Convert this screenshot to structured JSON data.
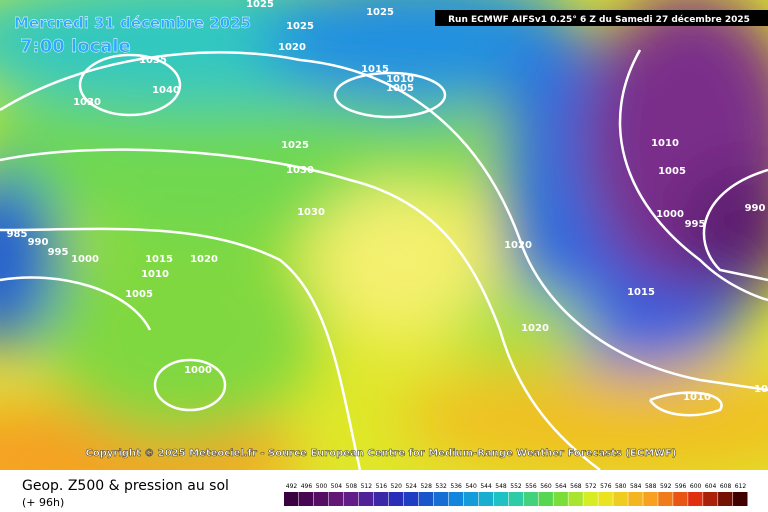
{
  "header": {
    "date": "Mercredi 31 décembre 2025",
    "time": "7:00 locale",
    "run": "Run ECMWF AIFSv1 0.25° 6 Z du Samedi 27 décembre 2025"
  },
  "isobars": [
    "1025",
    "1025",
    "1025",
    "1020",
    "1035",
    "1040",
    "1030",
    "1015",
    "1010",
    "1005",
    "1025",
    "1030",
    "1030",
    "1010",
    "1005",
    "1000",
    "995",
    "990",
    "985",
    "990",
    "995",
    "1000",
    "1015",
    "1020",
    "1010",
    "1005",
    "1020",
    "1015",
    "1020",
    "1000",
    "1010",
    "1025"
  ],
  "footer": {
    "copyright": "Copyright © 2025 Meteociel.fr - Source European Centre for Medium-Range Weather Forecasts (ECMWF)",
    "title": "Geop. Z500 & pression au sol",
    "lead": "(+ 96h)",
    "scale": [
      492,
      496,
      500,
      504,
      508,
      512,
      516,
      520,
      524,
      528,
      532,
      536,
      540,
      544,
      548,
      552,
      556,
      560,
      564,
      568,
      572,
      576,
      580,
      584,
      588,
      592,
      596,
      600,
      604,
      608,
      612
    ]
  }
}
